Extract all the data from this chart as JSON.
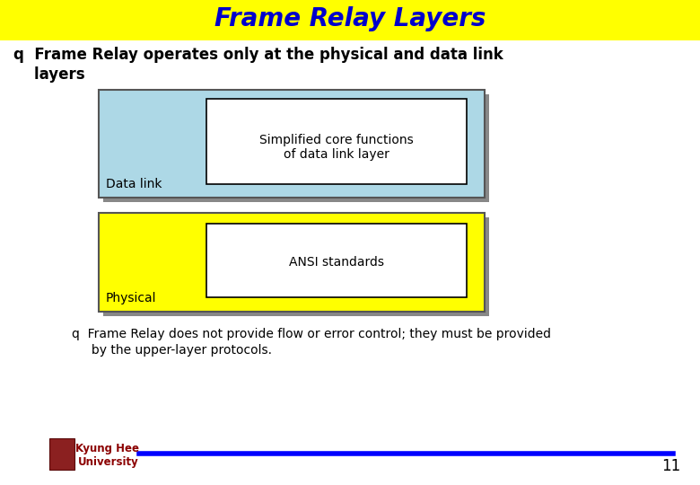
{
  "title": "Frame Relay Layers",
  "title_color": "#0000CC",
  "title_bg": "#FFFF00",
  "title_fontsize": 20,
  "bg_color": "#FFFFFF",
  "bullet1_text1": "q  Frame Relay operates only at the physical and data link",
  "bullet1_text2": "    layers",
  "datalink_label": "Data link",
  "datalink_bg": "#ADD8E6",
  "datalink_inner_text": "Simplified core functions\nof data link layer",
  "physical_label": "Physical",
  "physical_bg": "#FFFF00",
  "physical_inner_text": "ANSI standards",
  "bullet2_text1": "q  Frame Relay does not provide flow or error control; they must be provided",
  "bullet2_text2": "     by the upper-layer protocols.",
  "footer_left": "Kyung Hee\nUniversity",
  "page_number": "11",
  "line_color": "#0000FF",
  "shadow_color": "#888888",
  "inner_box_color": "#FFFFFF",
  "box_edge_color": "#555555"
}
